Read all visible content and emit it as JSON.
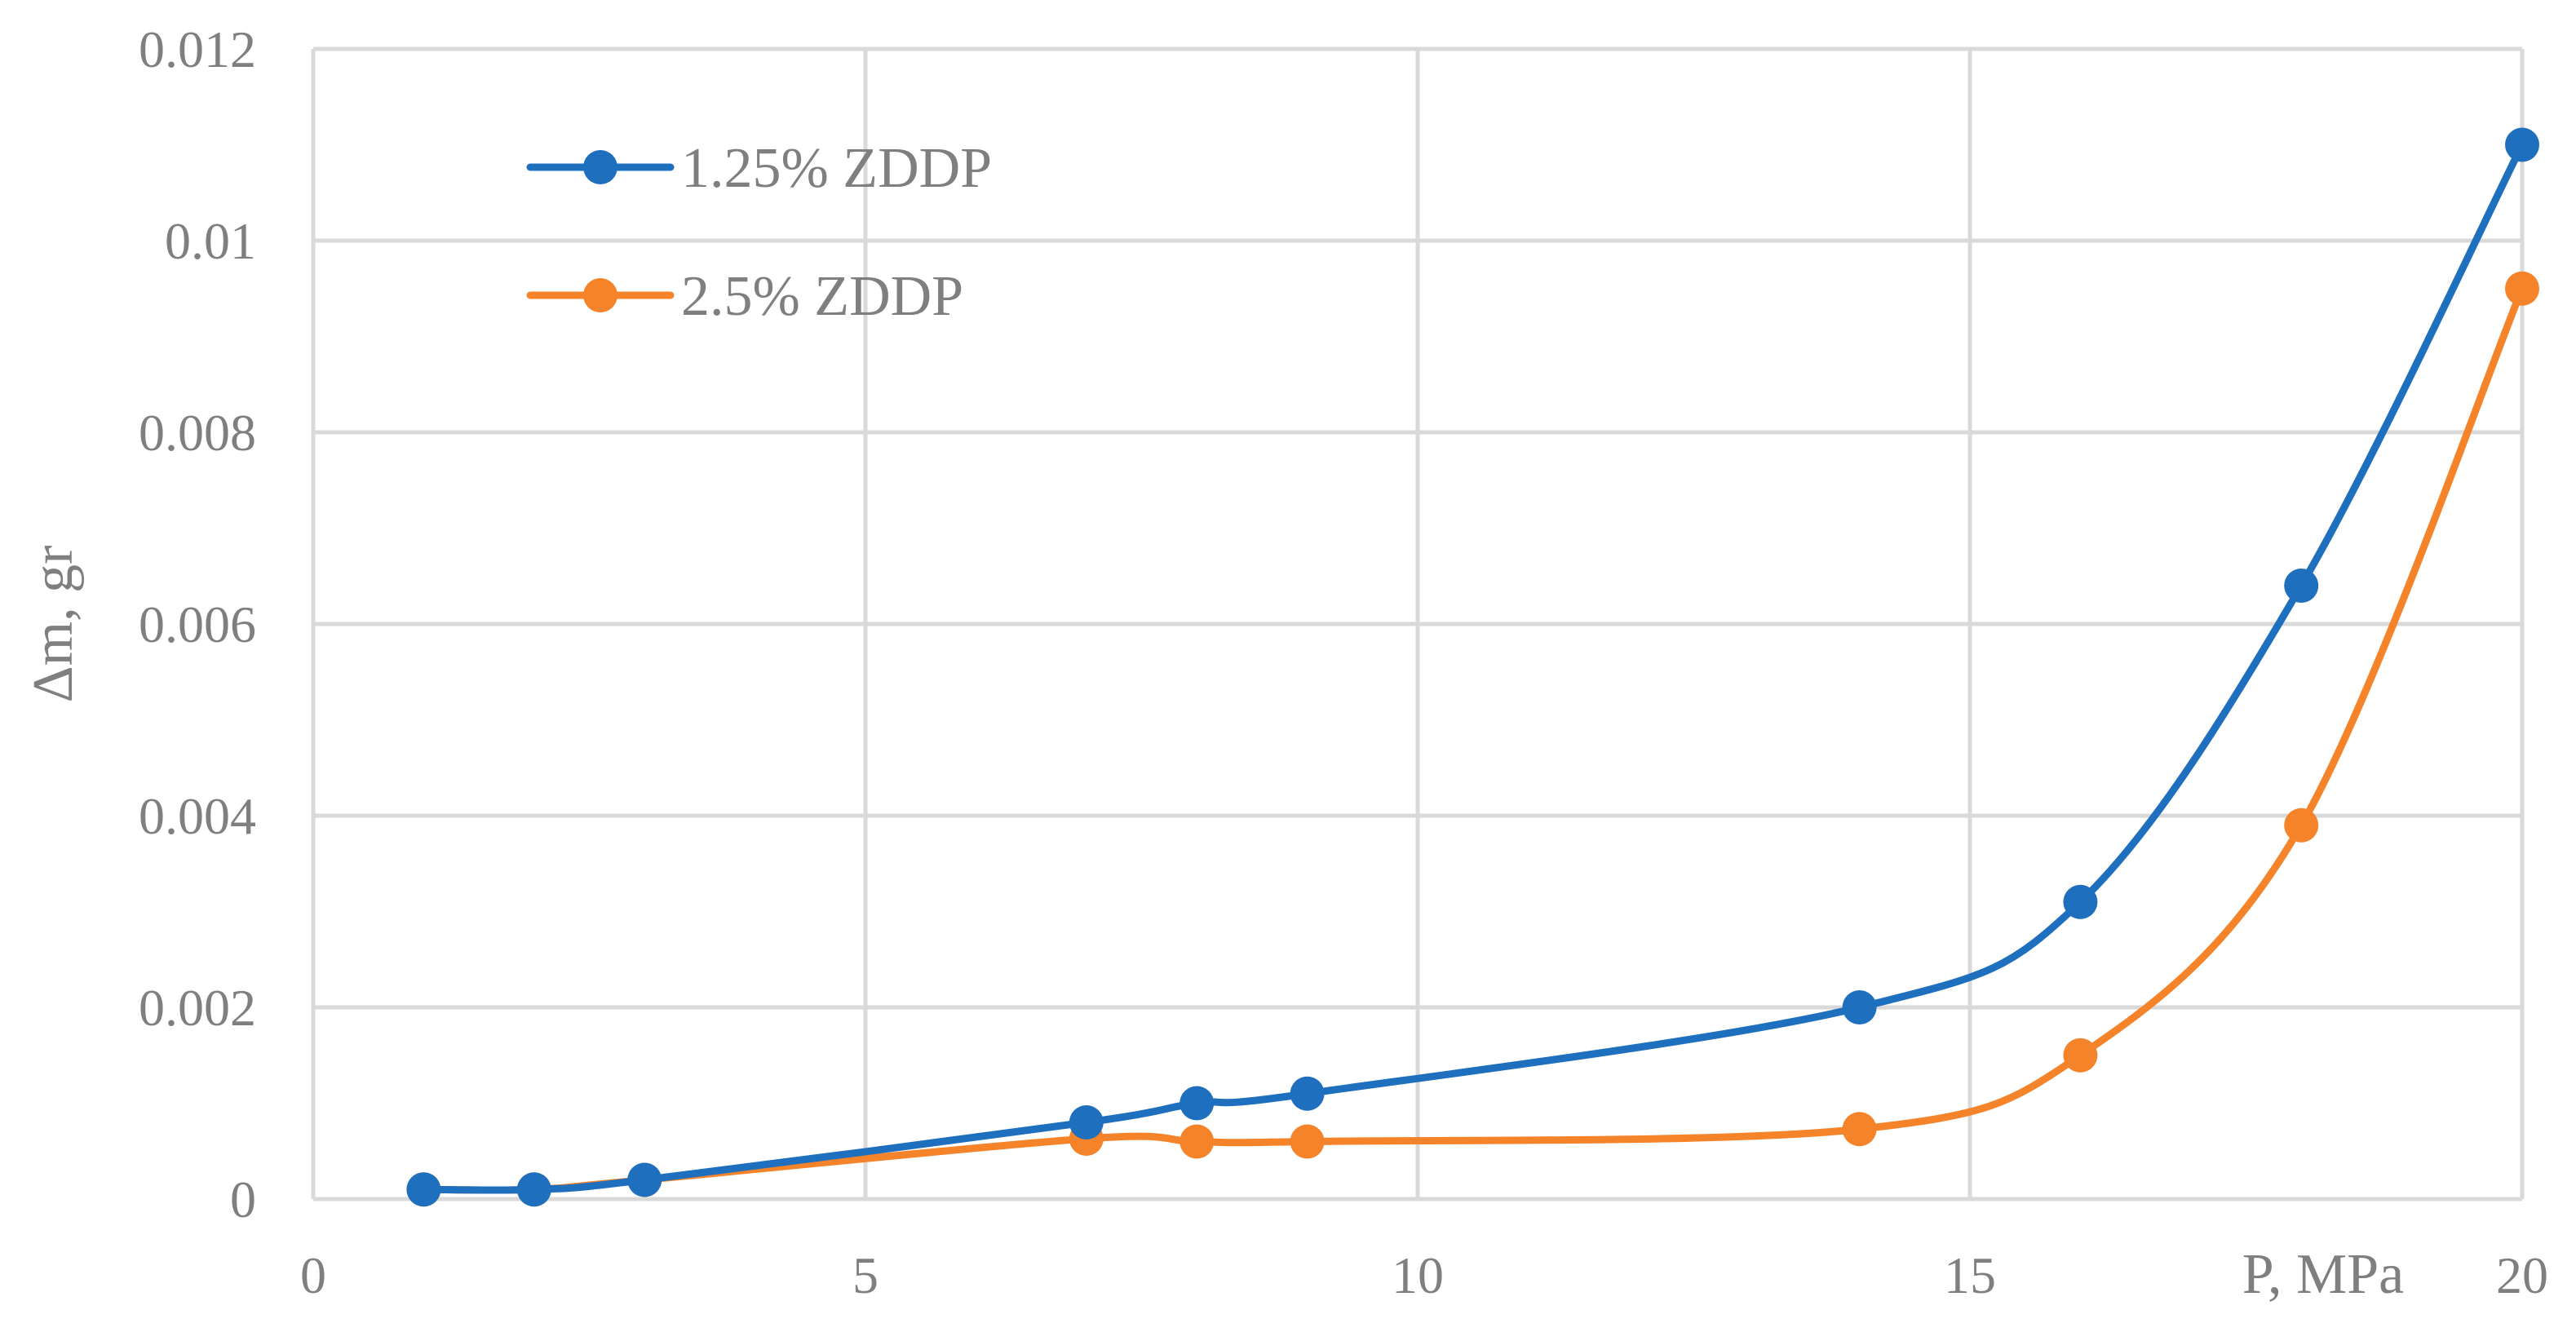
{
  "chart_data": {
    "type": "line",
    "title": "",
    "xlabel": "P, MPa",
    "ylabel": "Δm, gr",
    "xlim": [
      0,
      20
    ],
    "ylim": [
      0,
      0.012
    ],
    "x_ticks": [
      0,
      5,
      10,
      15,
      20
    ],
    "y_ticks": [
      0,
      0.002,
      0.004,
      0.006,
      0.008,
      0.01,
      0.012
    ],
    "x_tick_labels": [
      "0",
      "5",
      "10",
      "15",
      "20"
    ],
    "y_tick_labels": [
      "0",
      "0.002",
      "0.004",
      "0.006",
      "0.008",
      "0.01",
      "0.012"
    ],
    "grid": true,
    "smooth": true,
    "legend_position": "top-left",
    "series": [
      {
        "name": "1.25% ZDDP",
        "color": "#1f6fbf",
        "x": [
          1,
          2,
          3,
          7,
          8,
          9,
          14,
          16,
          18,
          20
        ],
        "y": [
          0.0001,
          0.0001,
          0.0002,
          0.0008,
          0.001,
          0.0011,
          0.002,
          0.0031,
          0.0064,
          0.011
        ]
      },
      {
        "name": "2.5% ZDDP",
        "color": "#f5832a",
        "x": [
          1,
          2,
          3,
          7,
          8,
          9,
          14,
          16,
          18,
          20
        ],
        "y": [
          0.0001,
          0.0001,
          0.0002,
          0.00063,
          0.0006,
          0.0006,
          0.00073,
          0.0015,
          0.0039,
          0.0095
        ]
      }
    ]
  },
  "colors": {
    "grid": "#d9d9d9",
    "text": "#7f7f7f"
  }
}
